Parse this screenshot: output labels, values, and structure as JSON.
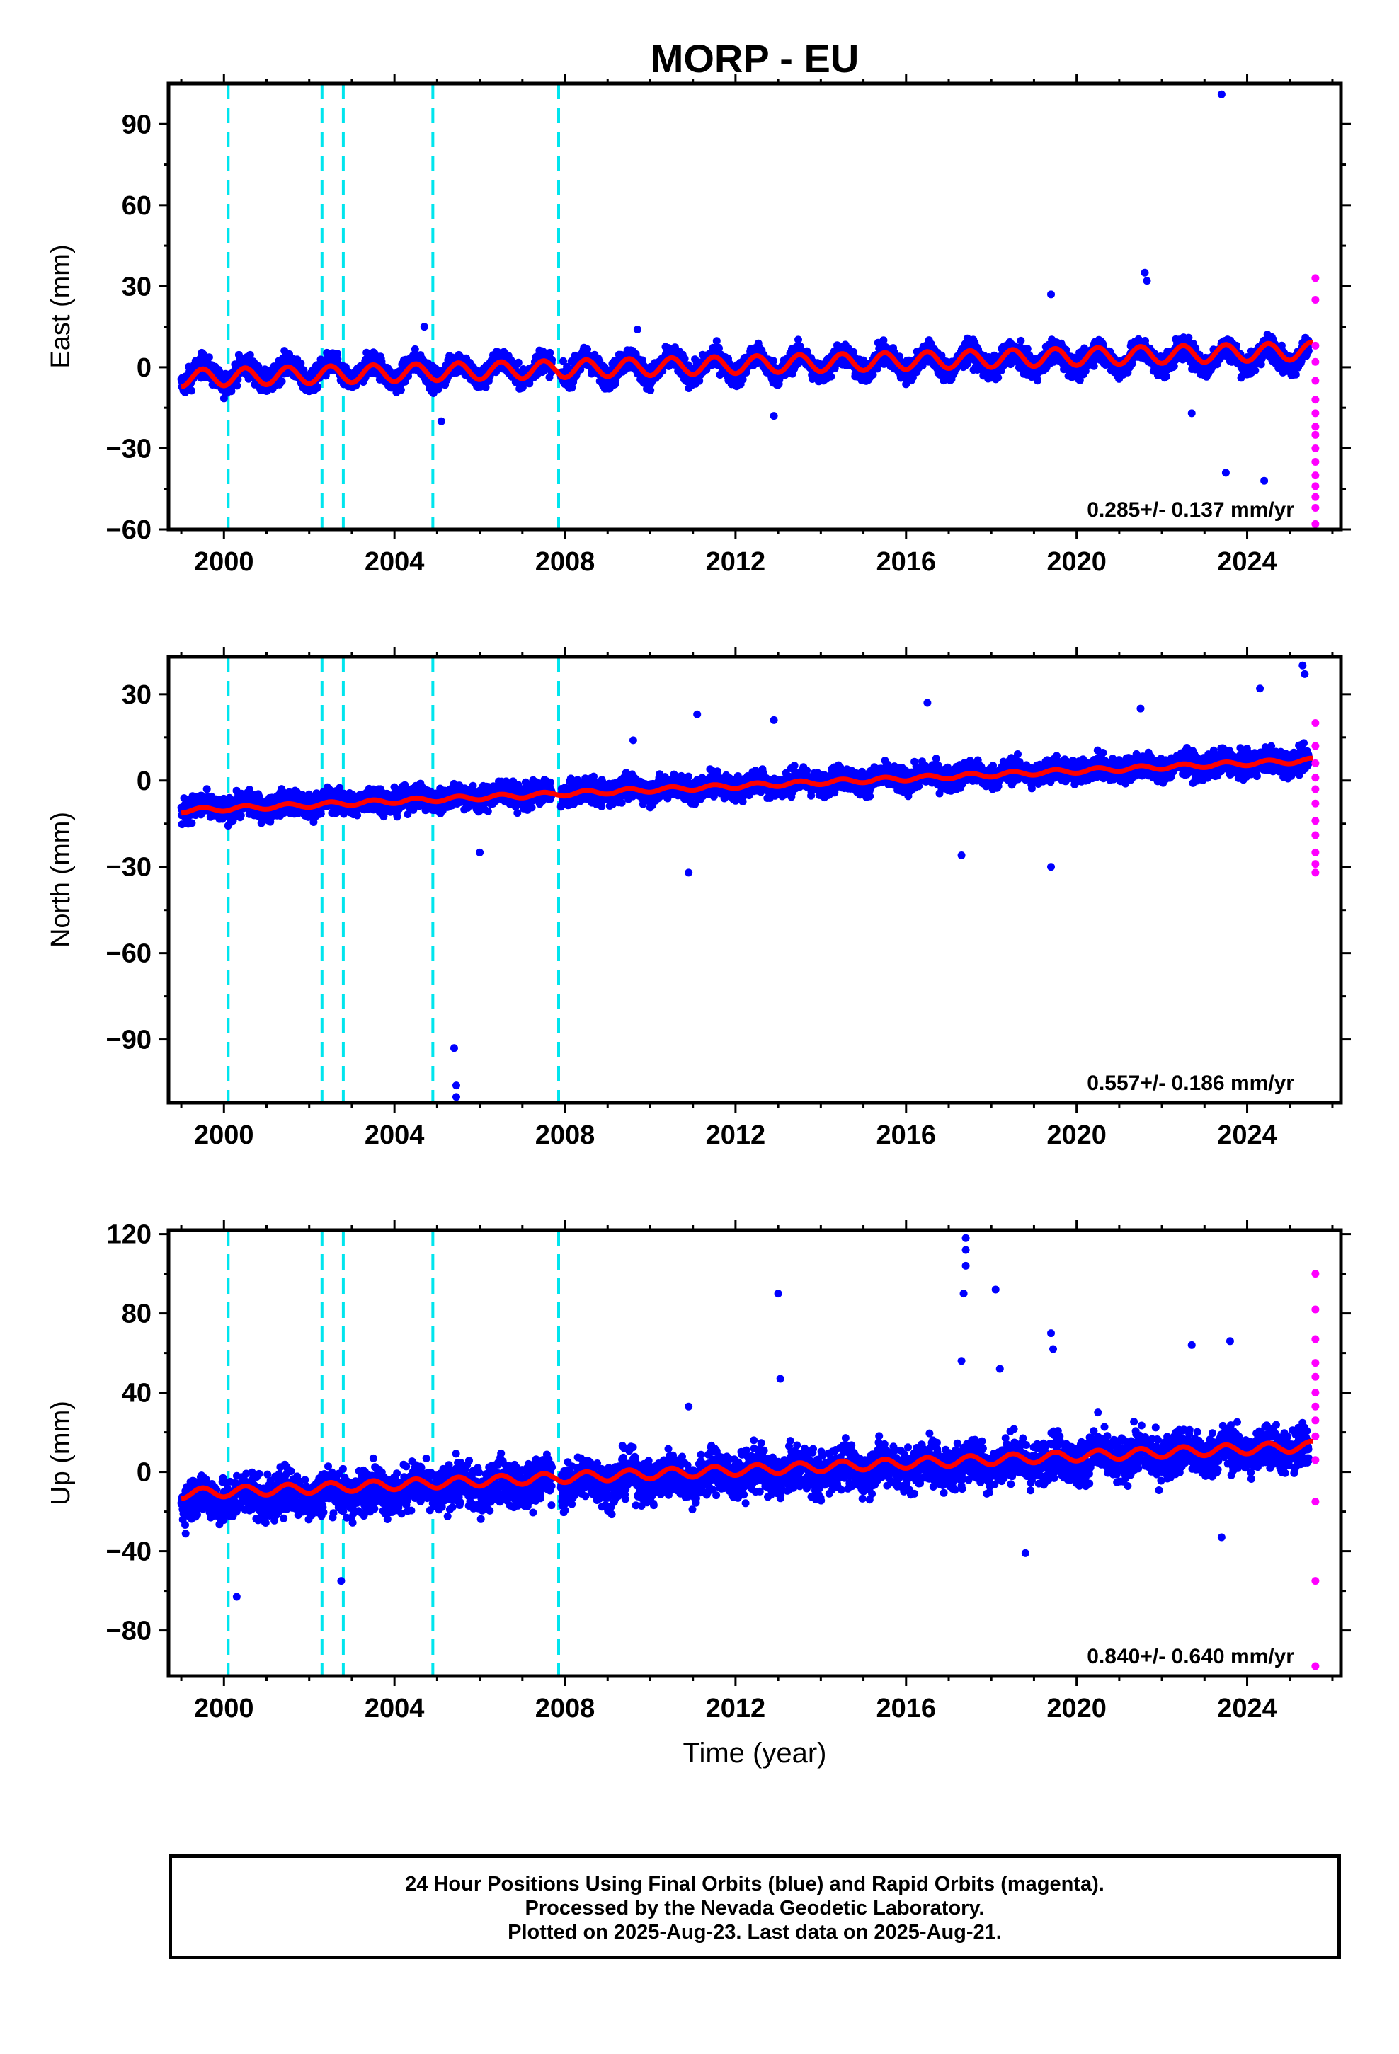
{
  "title": "MORP - EU",
  "xlabel": "Time (year)",
  "footer": {
    "line1": "24 Hour Positions Using Final Orbits (blue) and Rapid Orbits (magenta).",
    "line2": "Processed by the Nevada Geodetic Laboratory.",
    "line3": "Plotted on 2025-Aug-23. Last data on 2025-Aug-21."
  },
  "colors": {
    "final_orbits": "#0000ff",
    "rapid_orbits": "#ff00ff",
    "model_fit": "#ff0000",
    "equipment_changes": "#00e5ee",
    "frame": "#000000"
  },
  "chart_data": [
    {
      "type": "scatter",
      "ylabel": "East (mm)",
      "xlim": [
        1998.7,
        2026.2
      ],
      "ylim": [
        -60,
        105
      ],
      "xticks": [
        2000,
        2004,
        2008,
        2012,
        2016,
        2020,
        2024
      ],
      "yticks": [
        -60,
        -30,
        0,
        30,
        60,
        90
      ],
      "rate": "0.285+/- 0.137 mm/yr",
      "equipment_changes": [
        2000.1,
        2002.3,
        2002.8,
        2004.9,
        2007.85
      ],
      "series": [
        {
          "name": "Final Orbits",
          "x_range": [
            1999.0,
            2025.45
          ],
          "trend": [
            -3.0,
            4.5
          ],
          "annual_amp": 3.5,
          "noise": 3.0,
          "gap": [
            2007.7,
            2007.9
          ],
          "outliers": [
            [
              2023.4,
              101
            ],
            [
              2023.5,
              -39
            ],
            [
              2024.4,
              -42
            ],
            [
              2021.6,
              35
            ],
            [
              2021.65,
              32
            ],
            [
              2019.4,
              27
            ],
            [
              2022.7,
              -17
            ],
            [
              2012.9,
              -18
            ],
            [
              2009.7,
              14
            ],
            [
              2005.1,
              -20
            ],
            [
              2004.7,
              15
            ]
          ]
        },
        {
          "name": "Rapid Orbits",
          "points": [
            [
              2025.6,
              33
            ],
            [
              2025.6,
              25
            ],
            [
              2025.6,
              8
            ],
            [
              2025.6,
              2
            ],
            [
              2025.6,
              -5
            ],
            [
              2025.6,
              -12
            ],
            [
              2025.6,
              -17
            ],
            [
              2025.6,
              -22
            ],
            [
              2025.6,
              -25
            ],
            [
              2025.6,
              -30
            ],
            [
              2025.6,
              -35
            ],
            [
              2025.6,
              -40
            ],
            [
              2025.6,
              -44
            ],
            [
              2025.6,
              -48
            ],
            [
              2025.6,
              -52
            ],
            [
              2025.6,
              -58
            ]
          ]
        },
        {
          "name": "Model Fit",
          "trend": [
            -4.0,
            6.0
          ],
          "annual_amp": 3.2
        }
      ]
    },
    {
      "type": "scatter",
      "ylabel": "North (mm)",
      "xlim": [
        1998.7,
        2026.2
      ],
      "ylim": [
        -112,
        43
      ],
      "xticks": [
        2000,
        2004,
        2008,
        2012,
        2016,
        2020,
        2024
      ],
      "yticks": [
        -90,
        -60,
        -30,
        0,
        30
      ],
      "rate": "0.557+/- 0.186 mm/yr",
      "equipment_changes": [
        2000.1,
        2002.3,
        2002.8,
        2004.9,
        2007.85
      ],
      "series": [
        {
          "name": "Final Orbits",
          "x_range": [
            1999.0,
            2025.45
          ],
          "trend": [
            -10.0,
            7.0
          ],
          "annual_amp": 1.2,
          "noise": 3.0,
          "gap": [
            2007.7,
            2007.9
          ],
          "outliers": [
            [
              2005.4,
              -93
            ],
            [
              2005.45,
              -106
            ],
            [
              2005.45,
              -110
            ],
            [
              2011.1,
              23
            ],
            [
              2012.9,
              21
            ],
            [
              2009.6,
              14
            ],
            [
              2016.5,
              27
            ],
            [
              2017.3,
              -26
            ],
            [
              2019.4,
              -30
            ],
            [
              2010.9,
              -32
            ],
            [
              2006.0,
              -25
            ],
            [
              2025.3,
              40
            ],
            [
              2025.35,
              37
            ],
            [
              2024.3,
              32
            ],
            [
              2021.5,
              25
            ]
          ]
        },
        {
          "name": "Rapid Orbits",
          "points": [
            [
              2025.6,
              20
            ],
            [
              2025.6,
              12
            ],
            [
              2025.6,
              6
            ],
            [
              2025.6,
              1
            ],
            [
              2025.6,
              -3
            ],
            [
              2025.6,
              -8
            ],
            [
              2025.6,
              -14
            ],
            [
              2025.6,
              -19
            ],
            [
              2025.6,
              -25
            ],
            [
              2025.6,
              -29
            ],
            [
              2025.6,
              -32
            ]
          ]
        },
        {
          "name": "Model Fit",
          "trend": [
            -10.5,
            7.0
          ],
          "annual_amp": 0.8
        }
      ]
    },
    {
      "type": "scatter",
      "ylabel": "Up (mm)",
      "xlim": [
        1998.7,
        2026.2
      ],
      "ylim": [
        -103,
        122
      ],
      "xticks": [
        2000,
        2004,
        2008,
        2012,
        2016,
        2020,
        2024
      ],
      "yticks": [
        -80,
        -40,
        0,
        40,
        80,
        120
      ],
      "rate": "0.840+/- 0.640 mm/yr",
      "equipment_changes": [
        2000.1,
        2002.3,
        2002.8,
        2004.9,
        2007.85
      ],
      "series": [
        {
          "name": "Final Orbits",
          "x_range": [
            1999.0,
            2025.45
          ],
          "trend": [
            -14.0,
            12.0
          ],
          "annual_amp": 3.0,
          "noise": 8.0,
          "gap": [
            2007.7,
            2007.9
          ],
          "outliers": [
            [
              2017.4,
              118
            ],
            [
              2017.4,
              112
            ],
            [
              2017.4,
              104
            ],
            [
              2017.35,
              90
            ],
            [
              2018.1,
              92
            ],
            [
              2013.0,
              90
            ],
            [
              2019.4,
              70
            ],
            [
              2019.45,
              62
            ],
            [
              2017.3,
              56
            ],
            [
              2018.2,
              52
            ],
            [
              2022.7,
              64
            ],
            [
              2023.6,
              66
            ],
            [
              2018.8,
              -41
            ],
            [
              2000.3,
              -63
            ],
            [
              2002.75,
              -55
            ],
            [
              2023.4,
              -33
            ],
            [
              2010.9,
              33
            ],
            [
              2013.05,
              47
            ],
            [
              2020.5,
              30
            ]
          ]
        },
        {
          "name": "Rapid Orbits",
          "points": [
            [
              2025.6,
              100
            ],
            [
              2025.6,
              82
            ],
            [
              2025.6,
              67
            ],
            [
              2025.6,
              55
            ],
            [
              2025.6,
              48
            ],
            [
              2025.6,
              40
            ],
            [
              2025.6,
              33
            ],
            [
              2025.6,
              26
            ],
            [
              2025.6,
              18
            ],
            [
              2025.6,
              6
            ],
            [
              2025.6,
              -15
            ],
            [
              2025.6,
              -55
            ],
            [
              2025.6,
              -98
            ]
          ]
        },
        {
          "name": "Model Fit",
          "trend": [
            -11.0,
            13.0
          ],
          "annual_amp": 2.5
        }
      ]
    }
  ]
}
